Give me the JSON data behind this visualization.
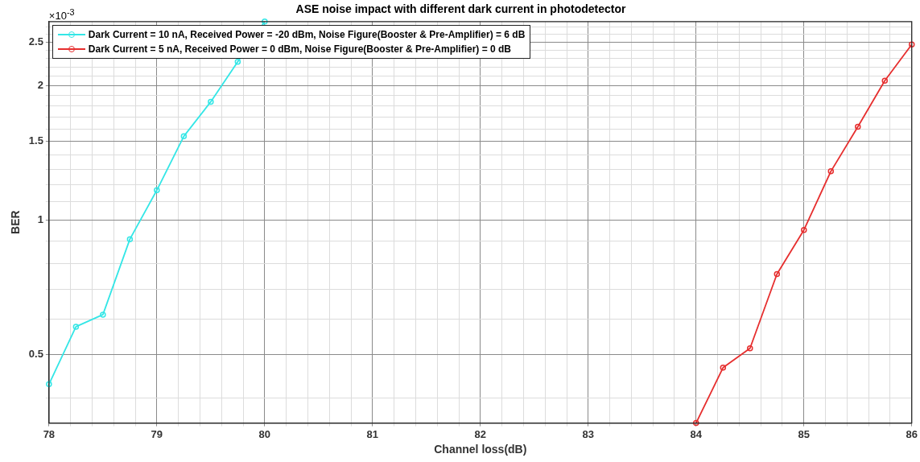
{
  "chart_data": {
    "type": "line",
    "title": "ASE noise impact with different dark current in photodetector",
    "xlabel": "Channel loss(dB)",
    "ylabel": "BER",
    "annotations": [
      "×10$^{-3}$"
    ],
    "log": "y",
    "grid": true,
    "legend": "top left",
    "marker": "circle",
    "line_style": "solid",
    "xlim": [
      78,
      86
    ],
    "ylim": [
      0.352,
      2.78
    ],
    "xticks": [
      78,
      {
        "value": 78.2,
        "label": null
      },
      {
        "value": 78.4,
        "label": null
      },
      {
        "value": 78.6,
        "label": null
      },
      {
        "value": 78.8,
        "label": null
      },
      79,
      {
        "value": 79.2,
        "label": null
      },
      {
        "value": 79.4,
        "label": null
      },
      {
        "value": 79.6,
        "label": null
      },
      {
        "value": 79.8,
        "label": null
      },
      80,
      {
        "value": 80.2,
        "label": null
      },
      {
        "value": 80.4,
        "label": null
      },
      {
        "value": 80.6,
        "label": null
      },
      {
        "value": 80.8,
        "label": null
      },
      81,
      {
        "value": 81.2,
        "label": null
      },
      {
        "value": 81.4,
        "label": null
      },
      {
        "value": 81.6,
        "label": null
      },
      {
        "value": 81.8,
        "label": null
      },
      82,
      {
        "value": 82.2,
        "label": null
      },
      {
        "value": 82.4,
        "label": null
      },
      {
        "value": 82.6,
        "label": null
      },
      {
        "value": 82.8,
        "label": null
      },
      83,
      {
        "value": 83.2,
        "label": null
      },
      {
        "value": 83.4,
        "label": null
      },
      {
        "value": 83.6,
        "label": null
      },
      {
        "value": 83.8,
        "label": null
      },
      84,
      {
        "value": 84.2,
        "label": null
      },
      {
        "value": 84.4,
        "label": null
      },
      {
        "value": 84.6,
        "label": null
      },
      {
        "value": 84.8,
        "label": null
      },
      85,
      {
        "value": 85.2,
        "label": null
      },
      {
        "value": 85.4,
        "label": null
      },
      {
        "value": 85.6,
        "label": null
      },
      {
        "value": 85.8,
        "label": null
      },
      86
    ],
    "yticks": [
      {
        "value": 0.4,
        "label": null
      },
      0.5,
      {
        "value": 0.6,
        "label": null
      },
      {
        "value": 0.7,
        "label": null
      },
      {
        "value": 0.8,
        "label": null
      },
      {
        "value": 0.9,
        "label": null
      },
      1,
      {
        "value": 1.1,
        "label": null
      },
      {
        "value": 1.2,
        "label": null
      },
      {
        "value": 1.3,
        "label": null
      },
      {
        "value": 1.4,
        "label": null
      },
      1.5,
      {
        "value": 1.6,
        "label": null
      },
      {
        "value": 1.7,
        "label": null
      },
      {
        "value": 1.8,
        "label": null
      },
      {
        "value": 1.9,
        "label": null
      },
      2,
      {
        "value": 2.1,
        "label": null
      },
      {
        "value": 2.2,
        "label": null
      },
      {
        "value": 2.3,
        "label": null
      },
      {
        "value": 2.4,
        "label": null
      },
      2.5,
      {
        "value": 2.6,
        "label": null
      },
      {
        "value": 2.7,
        "label": null
      }
    ],
    "series": [
      {
        "name": "Dark Current = 10 nA, Received Power = -20 dBm, Noise Figure(Booster & Pre-Amplifier) = 6 dB",
        "color": "#33e6e6",
        "x": [
          78,
          78.25,
          78.5,
          78.75,
          79,
          79.25,
          79.5,
          79.75,
          80
        ],
        "values": [
          0.43,
          0.578,
          0.615,
          0.907,
          1.167,
          1.54,
          1.84,
          2.26,
          2.78
        ]
      },
      {
        "name": "Dark Current = 5 nA, Received Power = 0 dBm, Noise Figure(Booster & Pre-Amplifier) = 0 dB",
        "color": "#e62e2e",
        "x": [
          84,
          84.25,
          84.5,
          84.75,
          85,
          85.25,
          85.5,
          85.75,
          86
        ],
        "values": [
          0.352,
          0.468,
          0.517,
          0.758,
          0.951,
          1.286,
          1.618,
          2.05,
          2.47
        ]
      }
    ]
  }
}
